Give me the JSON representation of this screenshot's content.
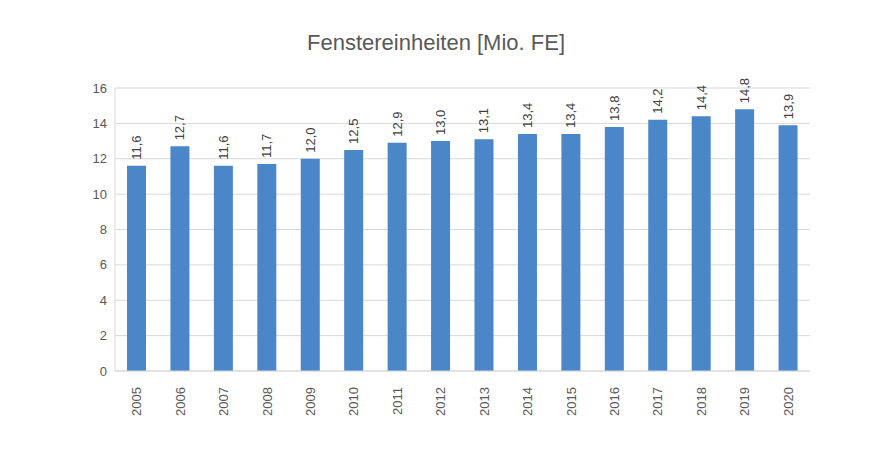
{
  "chart_data": {
    "type": "bar",
    "title": "Fenstereinheiten [Mio. FE]",
    "categories": [
      "2005",
      "2006",
      "2007",
      "2008",
      "2009",
      "2010",
      "2011",
      "2012",
      "2013",
      "2014",
      "2015",
      "2016",
      "2017",
      "2018",
      "2019",
      "2020"
    ],
    "values": [
      11.6,
      12.7,
      11.6,
      11.7,
      12.0,
      12.5,
      12.9,
      13.0,
      13.1,
      13.4,
      13.4,
      13.8,
      14.2,
      14.4,
      14.8,
      13.9
    ],
    "value_labels": [
      "11,6",
      "12,7",
      "11,6",
      "11,7",
      "12,0",
      "12,5",
      "12,9",
      "13,0",
      "13,1",
      "13,4",
      "13,4",
      "13,8",
      "14,2",
      "14,4",
      "14,8",
      "13,9"
    ],
    "color": "#4a86c8",
    "ylim": [
      0,
      16
    ],
    "yticks": [
      0,
      2,
      4,
      6,
      8,
      10,
      12,
      14,
      16
    ],
    "grid": true,
    "data_labels": true
  }
}
